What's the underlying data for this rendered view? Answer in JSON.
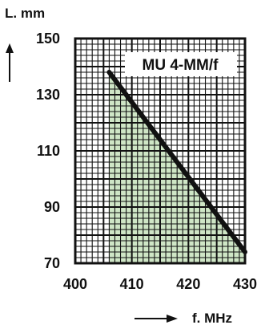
{
  "chart_data": {
    "type": "area",
    "title": "MU  4-MM/f",
    "ylabel": "L. mm",
    "xlabel": "f. MHz",
    "xlim": [
      400,
      430
    ],
    "ylim": [
      70,
      150
    ],
    "x_ticks": [
      "400",
      "410",
      "420",
      "430"
    ],
    "y_ticks": [
      "150",
      "130",
      "110",
      "90",
      "70"
    ],
    "grid": true,
    "series": [
      {
        "x": [
          406,
          418,
          430
        ],
        "y": [
          138,
          106,
          74
        ]
      }
    ],
    "colors": {
      "fill": "#cfe6c6",
      "line": "#111111",
      "grid": "#111111"
    }
  }
}
